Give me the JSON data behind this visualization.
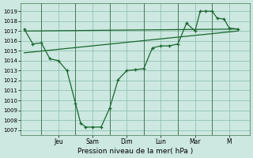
{
  "xlabel": "Pression niveau de la mer( hPa )",
  "bg_color": "#cce8e0",
  "grid_color": "#88bbaa",
  "line_color": "#1a6630",
  "sep_color": "#447755",
  "ylim": [
    1006.5,
    1019.8
  ],
  "yticks": [
    1007,
    1008,
    1009,
    1010,
    1011,
    1012,
    1013,
    1014,
    1015,
    1016,
    1017,
    1018,
    1019
  ],
  "xtick_labels": [
    "Jeu",
    "Sam",
    "Dim",
    "Lun",
    "Mar",
    "M"
  ],
  "xtick_pos": [
    2,
    4,
    6,
    8,
    10,
    12
  ],
  "sep_pos": [
    1,
    3,
    5,
    7,
    9,
    11
  ],
  "xlim": [
    -0.2,
    13.2
  ],
  "line1_x": [
    0,
    0.5,
    1,
    1.5,
    2,
    2.5,
    3,
    3.3,
    3.6,
    4,
    4.5,
    5,
    5.5,
    6,
    6.5,
    7,
    7.5,
    8,
    8.5,
    9,
    9.5,
    10,
    10.3,
    10.6,
    11,
    11.3,
    11.7,
    12,
    12.5
  ],
  "line1_y": [
    1017.2,
    1015.7,
    1015.8,
    1014.2,
    1014.0,
    1013.0,
    1009.7,
    1007.7,
    1007.3,
    1007.3,
    1007.3,
    1009.2,
    1012.1,
    1013.0,
    1013.1,
    1013.2,
    1015.3,
    1015.5,
    1015.5,
    1015.7,
    1017.8,
    1017.0,
    1019.0,
    1019.0,
    1019.0,
    1018.3,
    1018.2,
    1017.3,
    1017.2
  ],
  "line2_x": [
    0,
    12.5
  ],
  "line2_y": [
    1014.8,
    1017.0
  ],
  "line3_x": [
    0,
    12.5
  ],
  "line3_y": [
    1017.0,
    1017.2
  ]
}
